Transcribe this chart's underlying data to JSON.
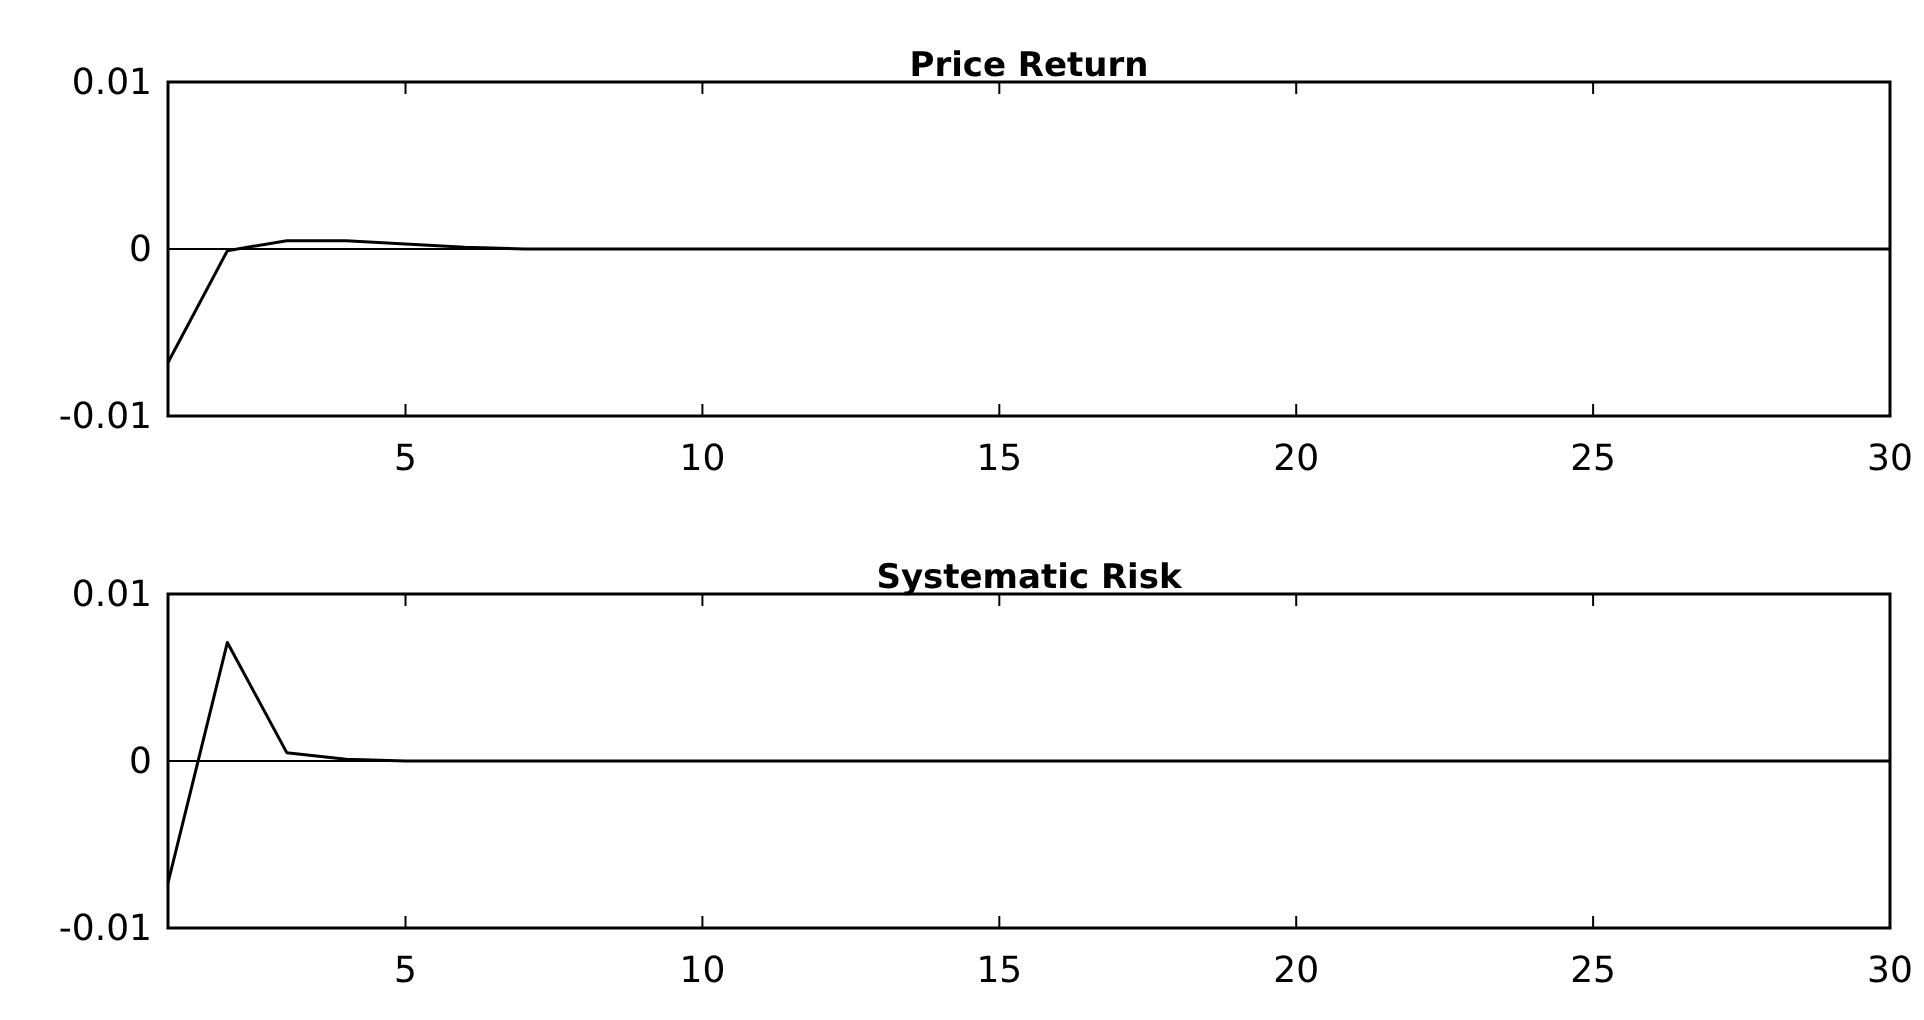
{
  "chart_data": [
    {
      "type": "line",
      "title": "Price Return",
      "x": [
        1,
        2,
        3,
        4,
        5,
        6,
        7,
        8,
        9,
        10,
        11,
        12,
        13,
        14,
        15,
        16,
        17,
        18,
        19,
        20,
        21,
        22,
        23,
        24,
        25,
        26,
        27,
        28,
        29,
        30
      ],
      "series": [
        {
          "color": "#000000",
          "values": [
            -0.0068,
            -0.0001,
            0.0005,
            0.0005,
            0.0003,
            0.0001,
            0,
            0,
            0,
            0,
            0,
            0,
            0,
            0,
            0,
            0,
            0,
            0,
            0,
            0,
            0,
            0,
            0,
            0,
            0,
            0,
            0,
            0,
            0,
            0
          ]
        }
      ],
      "xlim": [
        1,
        30
      ],
      "xticks": [
        5,
        10,
        15,
        20,
        25,
        30
      ],
      "ylim": [
        -0.01,
        0.01
      ],
      "yticks": [
        -0.01,
        0,
        0.01
      ],
      "ref_lines": [
        {
          "axis": "y",
          "value": 0,
          "color": "#000000"
        }
      ]
    },
    {
      "type": "line",
      "title": "Systematic Risk",
      "x": [
        1,
        2,
        3,
        4,
        5,
        6,
        7,
        8,
        9,
        10,
        11,
        12,
        13,
        14,
        15,
        16,
        17,
        18,
        19,
        20,
        21,
        22,
        23,
        24,
        25,
        26,
        27,
        28,
        29,
        30
      ],
      "series": [
        {
          "color": "#000000",
          "values": [
            -0.0073,
            0.0071,
            0.0005,
            0.0001,
            0,
            0,
            0,
            0,
            0,
            0,
            0,
            0,
            0,
            0,
            0,
            0,
            0,
            0,
            0,
            0,
            0,
            0,
            0,
            0,
            0,
            0,
            0,
            0,
            0,
            0
          ]
        }
      ],
      "xlim": [
        1,
        30
      ],
      "xticks": [
        5,
        10,
        15,
        20,
        25,
        30
      ],
      "ylim": [
        -0.01,
        0.01
      ],
      "yticks": [
        -0.01,
        0,
        0.01
      ],
      "ref_lines": [
        {
          "axis": "y",
          "value": 0,
          "color": "#000000"
        }
      ]
    }
  ]
}
